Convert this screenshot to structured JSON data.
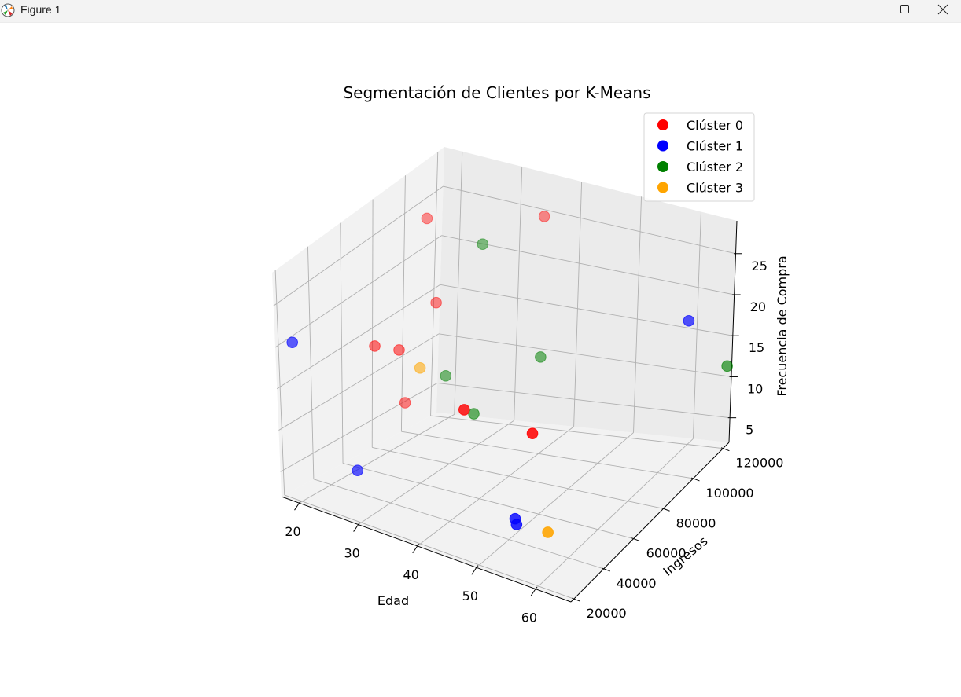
{
  "window": {
    "title": "Figure 1"
  },
  "chart_data": {
    "type": "scatter",
    "title": "Segmentación de Clientes por K-Means",
    "xlabel": "Edad",
    "ylabel": "Ingresos",
    "zlabel": "Frecuencia de Compra",
    "xticks": [
      "20",
      "30",
      "40",
      "50",
      "60"
    ],
    "yticks": [
      "20000",
      "40000",
      "60000",
      "80000",
      "100000",
      "120000"
    ],
    "zticks": [
      "5",
      "10",
      "15",
      "20",
      "25"
    ],
    "xlim": [
      17,
      66
    ],
    "ylim": [
      18000,
      124000
    ],
    "zlim": [
      2,
      29
    ],
    "grid": true,
    "legend_position": "top-right",
    "series": [
      {
        "name": "Clúster 0",
        "color": "#ff0000",
        "points": [
          {
            "x": 35,
            "y": 120000,
            "z": 25
          },
          {
            "x": 22,
            "y": 95000,
            "z": 26
          },
          {
            "x": 25,
            "y": 90000,
            "z": 18
          },
          {
            "x": 45,
            "y": 30000,
            "z": 19
          },
          {
            "x": 55,
            "y": 35000,
            "z": 18
          },
          {
            "x": 24,
            "y": 70000,
            "z": 15
          },
          {
            "x": 22,
            "y": 62000,
            "z": 16
          },
          {
            "x": 23,
            "y": 78000,
            "z": 8
          }
        ]
      },
      {
        "name": "Clúster 1",
        "color": "#0000ff",
        "points": [
          {
            "x": 18,
            "y": 25000,
            "z": 20
          },
          {
            "x": 62,
            "y": 110000,
            "z": 19
          },
          {
            "x": 25,
            "y": 38000,
            "z": 5
          },
          {
            "x": 50,
            "y": 44000,
            "z": 4
          },
          {
            "x": 51,
            "y": 41000,
            "z": 4
          }
        ]
      },
      {
        "name": "Clúster 2",
        "color": "#008000",
        "points": [
          {
            "x": 30,
            "y": 100000,
            "z": 24
          },
          {
            "x": 28,
            "y": 85000,
            "z": 11
          },
          {
            "x": 35,
            "y": 76000,
            "z": 9
          },
          {
            "x": 40,
            "y": 100000,
            "z": 13
          },
          {
            "x": 65,
            "y": 125000,
            "z": 11
          }
        ]
      },
      {
        "name": "Clúster 3",
        "color": "#ffa500",
        "points": [
          {
            "x": 28,
            "y": 68000,
            "z": 14
          },
          {
            "x": 58,
            "y": 34000,
            "z": 6
          }
        ]
      }
    ]
  }
}
